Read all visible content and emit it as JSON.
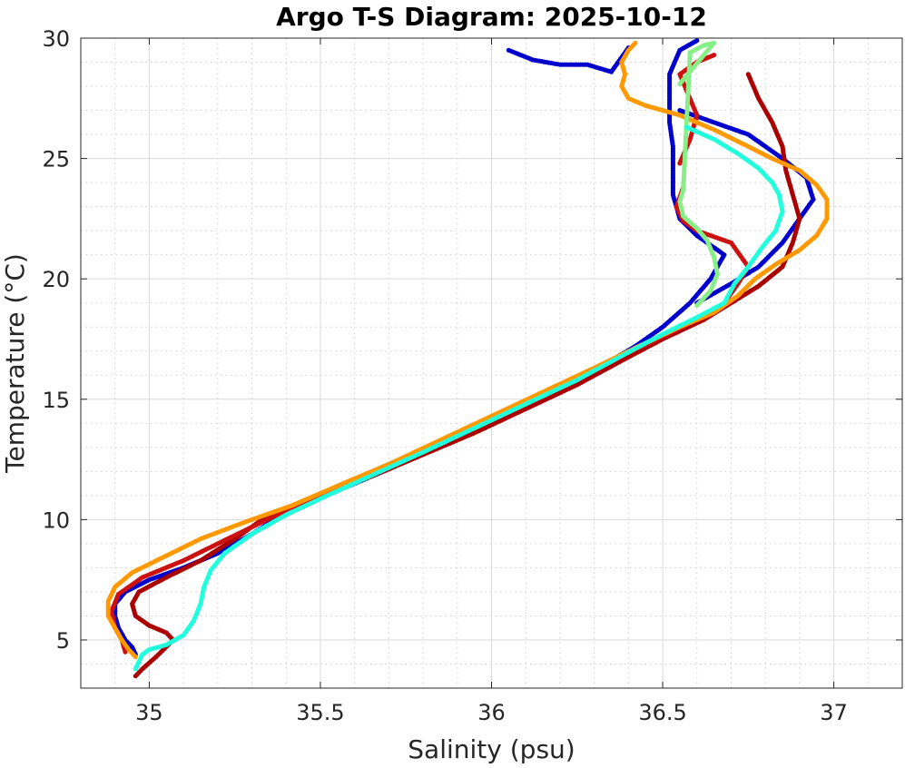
{
  "chart_data": {
    "type": "scatter",
    "title": "Argo T-S Diagram: 2025-10-12",
    "xlabel": "Salinity (psu)",
    "ylabel": "Temperature (°C)",
    "xlim": [
      34.8,
      37.2
    ],
    "ylim": [
      3,
      30
    ],
    "xticks": [
      35,
      35.5,
      36,
      36.5,
      37
    ],
    "xtick_labels": [
      "35",
      "35.5",
      "36",
      "36.5",
      "37"
    ],
    "yticks": [
      5,
      10,
      15,
      20,
      25,
      30
    ],
    "ytick_labels": [
      "5",
      "10",
      "15",
      "20",
      "25",
      "30"
    ],
    "grid": "major solid, minor dotted",
    "legend": "none",
    "series": [
      {
        "color": "#0000cc",
        "points": [
          [
            34.96,
            4.4
          ],
          [
            34.95,
            4.7
          ],
          [
            34.93,
            5.0
          ],
          [
            34.91,
            5.5
          ],
          [
            34.9,
            6.0
          ],
          [
            34.9,
            6.5
          ],
          [
            34.93,
            7.0
          ],
          [
            35.0,
            7.5
          ],
          [
            35.1,
            8.0
          ],
          [
            35.2,
            8.6
          ],
          [
            35.3,
            9.4
          ],
          [
            35.4,
            10.3
          ],
          [
            35.55,
            11.2
          ],
          [
            35.7,
            12.1
          ],
          [
            35.85,
            13.2
          ],
          [
            36.0,
            14.2
          ],
          [
            36.15,
            15.2
          ],
          [
            36.3,
            16.2
          ],
          [
            36.42,
            17.2
          ],
          [
            36.5,
            18.0
          ],
          [
            36.58,
            19.0
          ],
          [
            36.64,
            20.0
          ],
          [
            36.68,
            21.0
          ],
          [
            36.6,
            21.8
          ],
          [
            36.55,
            22.5
          ],
          [
            36.53,
            23.5
          ],
          [
            36.53,
            24.5
          ],
          [
            36.53,
            25.5
          ],
          [
            36.52,
            26.5
          ],
          [
            36.52,
            27.5
          ],
          [
            36.52,
            28.5
          ],
          [
            36.55,
            29.5
          ],
          [
            36.6,
            29.9
          ]
        ]
      },
      {
        "color": "#0000cc",
        "points": [
          [
            36.05,
            29.5
          ],
          [
            36.12,
            29.1
          ],
          [
            36.2,
            28.9
          ],
          [
            36.28,
            28.9
          ],
          [
            36.35,
            28.6
          ],
          [
            36.4,
            29.6
          ]
        ]
      },
      {
        "color": "#0000cc",
        "points": [
          [
            36.55,
            27.0
          ],
          [
            36.65,
            26.5
          ],
          [
            36.75,
            26.0
          ],
          [
            36.85,
            25.0
          ],
          [
            36.92,
            24.2
          ],
          [
            36.94,
            23.3
          ],
          [
            36.9,
            22.5
          ],
          [
            36.85,
            21.5
          ],
          [
            36.78,
            20.5
          ],
          [
            36.7,
            19.8
          ],
          [
            36.6,
            19.0
          ]
        ]
      },
      {
        "color": "#aa0000",
        "points": [
          [
            34.96,
            3.5
          ],
          [
            34.98,
            3.8
          ],
          [
            35.02,
            4.3
          ],
          [
            35.07,
            5.0
          ],
          [
            35.05,
            5.3
          ],
          [
            35.0,
            5.6
          ],
          [
            34.96,
            6.0
          ],
          [
            34.95,
            6.5
          ],
          [
            34.97,
            7.0
          ],
          [
            35.05,
            7.6
          ],
          [
            35.15,
            8.3
          ],
          [
            35.25,
            9.2
          ],
          [
            35.35,
            10.2
          ],
          [
            35.5,
            11.0
          ],
          [
            35.65,
            11.8
          ],
          [
            35.8,
            12.7
          ],
          [
            35.95,
            13.6
          ],
          [
            36.1,
            14.6
          ],
          [
            36.25,
            15.6
          ],
          [
            36.38,
            16.6
          ],
          [
            36.5,
            17.5
          ],
          [
            36.62,
            18.3
          ],
          [
            36.7,
            19.0
          ],
          [
            36.78,
            19.7
          ],
          [
            36.85,
            20.5
          ],
          [
            36.88,
            21.5
          ],
          [
            36.9,
            22.5
          ],
          [
            36.88,
            23.5
          ],
          [
            36.86,
            24.5
          ],
          [
            36.85,
            25.5
          ],
          [
            36.82,
            26.5
          ],
          [
            36.78,
            27.5
          ],
          [
            36.75,
            28.5
          ]
        ]
      },
      {
        "color": "#cc1111",
        "points": [
          [
            34.93,
            4.5
          ],
          [
            34.92,
            5.0
          ],
          [
            34.9,
            5.5
          ],
          [
            34.89,
            6.2
          ],
          [
            34.91,
            6.9
          ],
          [
            34.98,
            7.6
          ],
          [
            35.1,
            8.3
          ],
          [
            35.2,
            9.0
          ],
          [
            35.33,
            9.9
          ],
          [
            35.48,
            10.9
          ],
          [
            35.62,
            11.8
          ],
          [
            35.78,
            12.8
          ],
          [
            35.93,
            13.8
          ],
          [
            36.08,
            14.8
          ],
          [
            36.23,
            15.8
          ],
          [
            36.38,
            16.8
          ],
          [
            36.5,
            17.6
          ],
          [
            36.6,
            18.3
          ],
          [
            36.68,
            19.0
          ],
          [
            36.72,
            19.8
          ],
          [
            36.75,
            20.5
          ],
          [
            36.7,
            21.5
          ],
          [
            36.6,
            22.0
          ],
          [
            36.56,
            22.4
          ],
          [
            36.54,
            23.0
          ],
          [
            36.56,
            23.8
          ]
        ]
      },
      {
        "color": "#cc1111",
        "points": [
          [
            36.55,
            24.8
          ],
          [
            36.58,
            25.8
          ],
          [
            36.6,
            26.8
          ],
          [
            36.55,
            28.5
          ],
          [
            36.6,
            29.0
          ],
          [
            36.65,
            29.3
          ]
        ]
      },
      {
        "color": "#ff9900",
        "points": [
          [
            34.96,
            4.3
          ],
          [
            34.94,
            4.6
          ],
          [
            34.92,
            5.0
          ],
          [
            34.9,
            5.5
          ],
          [
            34.88,
            6.0
          ],
          [
            34.88,
            6.6
          ],
          [
            34.9,
            7.2
          ],
          [
            34.95,
            7.8
          ],
          [
            35.05,
            8.5
          ],
          [
            35.15,
            9.2
          ],
          [
            35.28,
            9.9
          ],
          [
            35.42,
            10.6
          ],
          [
            35.55,
            11.4
          ],
          [
            35.7,
            12.3
          ],
          [
            35.85,
            13.3
          ],
          [
            36.0,
            14.3
          ],
          [
            36.15,
            15.3
          ],
          [
            36.3,
            16.3
          ],
          [
            36.43,
            17.2
          ],
          [
            36.55,
            18.0
          ],
          [
            36.65,
            18.6
          ],
          [
            36.72,
            19.3
          ],
          [
            36.77,
            20.0
          ],
          [
            36.83,
            20.6
          ],
          [
            36.9,
            21.2
          ],
          [
            36.95,
            21.8
          ],
          [
            36.98,
            22.5
          ],
          [
            36.98,
            23.3
          ],
          [
            36.95,
            23.9
          ],
          [
            36.9,
            24.5
          ],
          [
            36.82,
            25.0
          ],
          [
            36.75,
            25.5
          ],
          [
            36.65,
            26.2
          ],
          [
            36.55,
            26.8
          ],
          [
            36.5,
            27.0
          ],
          [
            36.45,
            27.2
          ],
          [
            36.4,
            27.5
          ],
          [
            36.38,
            28.0
          ],
          [
            36.39,
            28.5
          ],
          [
            36.38,
            29.0
          ],
          [
            36.4,
            29.5
          ],
          [
            36.42,
            29.8
          ]
        ]
      },
      {
        "color": "#88ee88",
        "points": [
          [
            36.6,
            18.9
          ],
          [
            36.64,
            19.5
          ],
          [
            36.66,
            20.2
          ],
          [
            36.65,
            20.9
          ],
          [
            36.63,
            21.6
          ],
          [
            36.6,
            22.1
          ],
          [
            36.56,
            22.6
          ],
          [
            36.55,
            23.2
          ],
          [
            36.56,
            23.7
          ],
          [
            36.58,
            29.4
          ],
          [
            36.62,
            29.7
          ],
          [
            36.65,
            29.8
          ],
          [
            36.55,
            28.1
          ]
        ]
      },
      {
        "color": "#22ffdd",
        "points": [
          [
            34.96,
            3.8
          ],
          [
            34.97,
            4.1
          ],
          [
            34.98,
            4.4
          ],
          [
            35.0,
            4.6
          ],
          [
            35.05,
            4.8
          ],
          [
            35.1,
            5.2
          ],
          [
            35.13,
            5.8
          ],
          [
            35.15,
            6.5
          ],
          [
            35.16,
            7.2
          ],
          [
            35.18,
            7.9
          ],
          [
            35.22,
            8.6
          ],
          [
            35.3,
            9.4
          ],
          [
            35.4,
            10.2
          ],
          [
            35.52,
            11.0
          ],
          [
            35.66,
            11.9
          ],
          [
            35.8,
            12.8
          ],
          [
            35.95,
            13.8
          ],
          [
            36.1,
            14.8
          ],
          [
            36.25,
            15.8
          ],
          [
            36.38,
            16.8
          ],
          [
            36.5,
            17.7
          ],
          [
            36.6,
            18.4
          ],
          [
            36.68,
            19.0
          ],
          [
            36.71,
            19.8
          ],
          [
            36.75,
            20.5
          ],
          [
            36.79,
            21.3
          ],
          [
            36.83,
            22.0
          ],
          [
            36.85,
            22.8
          ],
          [
            36.84,
            23.5
          ],
          [
            36.82,
            24.0
          ],
          [
            36.78,
            24.6
          ],
          [
            36.72,
            25.2
          ],
          [
            36.65,
            25.8
          ],
          [
            36.57,
            26.3
          ]
        ]
      }
    ]
  }
}
